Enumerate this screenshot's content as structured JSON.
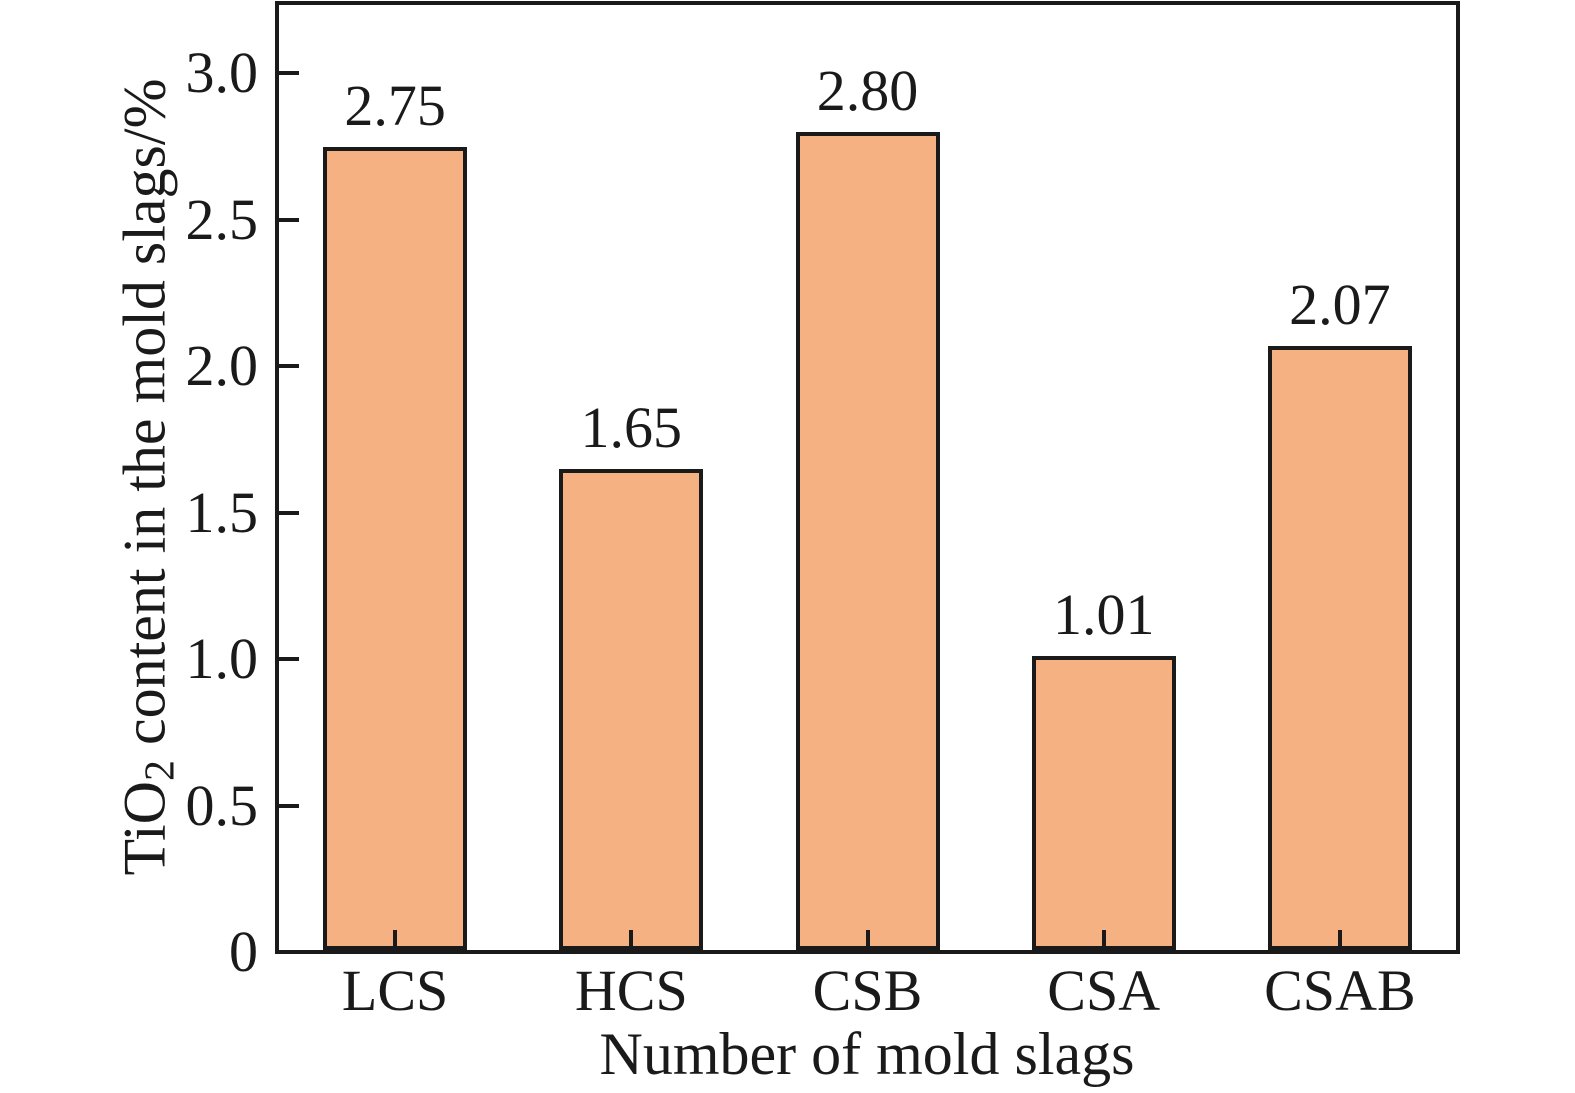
{
  "figure": {
    "background": "#FFFFFF"
  },
  "chart_data": {
    "type": "bar",
    "categories": [
      "LCS",
      "HCS",
      "CSB",
      "CSA",
      "CSAB"
    ],
    "values": [
      2.75,
      1.65,
      2.8,
      1.01,
      2.07
    ],
    "bar_labels": [
      "2.75",
      "1.65",
      "2.80",
      "1.01",
      "2.07"
    ],
    "title": "",
    "xlabel": "Number of mold slags",
    "ylabel": "TiO2 content in the mold slags/%",
    "ylabel_parts": {
      "base": "TiO",
      "subscript": "2",
      "rest": " content in the mold slags/%"
    },
    "ylim": [
      0,
      3.24
    ],
    "yticks": [
      0,
      0.5,
      1.0,
      1.5,
      2.0,
      2.5,
      3.0
    ],
    "ytick_labels": [
      "0",
      "0.5",
      "1.0",
      "1.5",
      "2.0",
      "2.5",
      "3.0"
    ],
    "grid": false,
    "legend": null,
    "tick_direction": "in",
    "bar_color": "#F6B183",
    "bar_edge_color": "#1A1A1A",
    "axis_color": "#1A1A1A",
    "text_color": "#1A1A1A"
  }
}
